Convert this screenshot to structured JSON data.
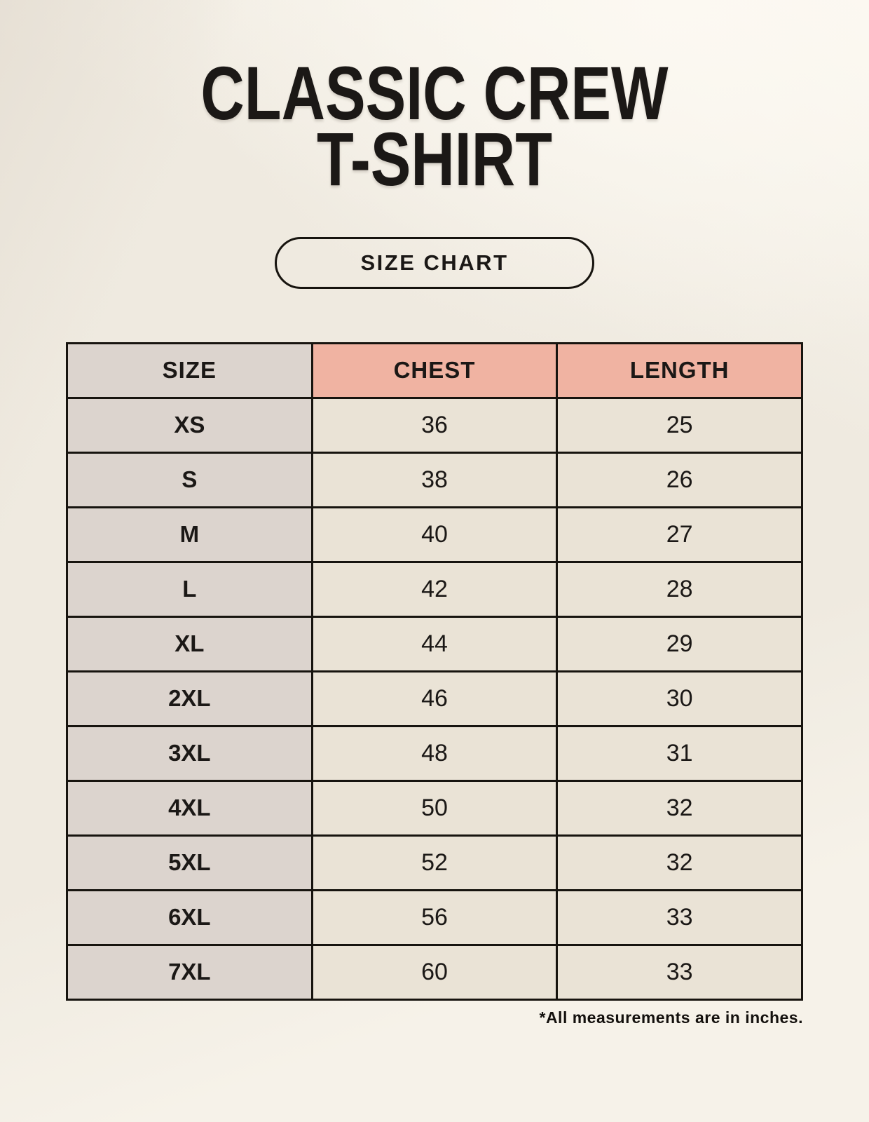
{
  "header": {
    "title_line1": "CLASSIC CREW",
    "title_line2": "T-SHIRT"
  },
  "size_chart_button": {
    "label": "SIZE CHART"
  },
  "chart_data": {
    "type": "table",
    "title": "CLASSIC CREW T-SHIRT",
    "columns": [
      "SIZE",
      "CHEST",
      "LENGTH"
    ],
    "rows": [
      {
        "size": "XS",
        "chest": "36",
        "length": "25"
      },
      {
        "size": "S",
        "chest": "38",
        "length": "26"
      },
      {
        "size": "M",
        "chest": "40",
        "length": "27"
      },
      {
        "size": "L",
        "chest": "42",
        "length": "28"
      },
      {
        "size": "XL",
        "chest": "44",
        "length": "29"
      },
      {
        "size": "2XL",
        "chest": "46",
        "length": "30"
      },
      {
        "size": "3XL",
        "chest": "48",
        "length": "31"
      },
      {
        "size": "4XL",
        "chest": "50",
        "length": "32"
      },
      {
        "size": "5XL",
        "chest": "52",
        "length": "32"
      },
      {
        "size": "6XL",
        "chest": "56",
        "length": "33"
      },
      {
        "size": "7XL",
        "chest": "60",
        "length": "33"
      }
    ]
  },
  "footnote": "*All measurements are in inches.",
  "colors": {
    "page_background": "#f6f2e9",
    "header_accent": "#f0b3a2",
    "size_column": "#dcd4ce",
    "data_cell": "#eae3d6",
    "border": "#17140f",
    "text": "#1b1816"
  }
}
